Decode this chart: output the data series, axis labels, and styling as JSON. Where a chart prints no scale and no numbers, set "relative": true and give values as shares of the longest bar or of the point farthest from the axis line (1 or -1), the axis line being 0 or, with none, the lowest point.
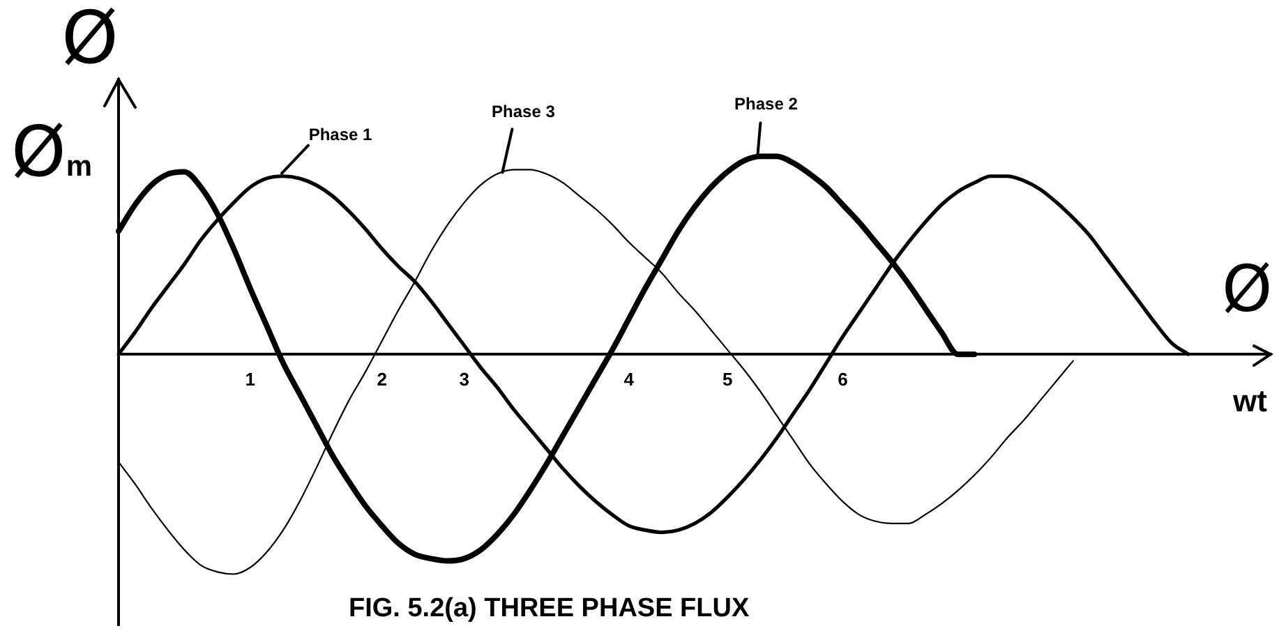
{
  "chart_data": {
    "type": "line",
    "title": "FIG. 5.2(a) THREE PHASE FLUX",
    "xlabel": "wt",
    "ylabel": "Ø",
    "annotations": [
      "Ø$_{m}$",
      "Ø"
    ],
    "relative": true,
    "categories": [
      null,
      null,
      null,
      null,
      null,
      null,
      null,
      null,
      "1",
      null,
      null,
      null,
      null,
      null,
      null,
      null,
      "2",
      null,
      null,
      null,
      null,
      "3",
      null,
      null,
      null,
      null,
      null,
      null,
      null,
      null,
      null,
      "4",
      null,
      null,
      null,
      null,
      null,
      "5",
      null,
      null,
      null,
      null,
      null,
      null,
      "6",
      null,
      null,
      null,
      null,
      null,
      null,
      null,
      null,
      null,
      null,
      null,
      null,
      null,
      null,
      null,
      null,
      null,
      null,
      null,
      null,
      null,
      null,
      null,
      null,
      null,
      null
    ],
    "series": [
      {
        "name": "Phase 1",
        "color": "#000000",
        "values": [
          0,
          0.1,
          0.21,
          0.31,
          0.41,
          0.52,
          0.61,
          0.69,
          0.76,
          0.8,
          0.81,
          0.8,
          0.77,
          0.72,
          0.65,
          0.57,
          0.48,
          0.4,
          0.33,
          0.24,
          0.14,
          0.04,
          -0.06,
          -0.15,
          -0.25,
          -0.34,
          -0.43,
          -0.52,
          -0.6,
          -0.67,
          -0.73,
          -0.78,
          -0.8,
          -0.81,
          -0.8,
          -0.77,
          -0.72,
          -0.65,
          -0.57,
          -0.48,
          -0.38,
          -0.27,
          -0.16,
          -0.04,
          0.08,
          0.19,
          0.3,
          0.41,
          0.51,
          0.6,
          0.68,
          0.74,
          0.78,
          0.81,
          0.81,
          0.79,
          0.75,
          0.69,
          0.62,
          0.54,
          0.44,
          0.34,
          0.24,
          0.14,
          0.05,
          0,
          null,
          null,
          null,
          null,
          null
        ]
      },
      {
        "name": "Phase 2",
        "color": "#000000",
        "values": [
          0.56,
          0.68,
          0.77,
          0.82,
          0.83,
          0.76,
          0.64,
          0.48,
          0.3,
          0.13,
          -0.04,
          -0.18,
          -0.32,
          -0.46,
          -0.58,
          -0.69,
          -0.78,
          -0.86,
          -0.91,
          -0.93,
          -0.94,
          -0.93,
          -0.89,
          -0.82,
          -0.73,
          -0.62,
          -0.5,
          -0.37,
          -0.24,
          -0.11,
          0.02,
          0.16,
          0.3,
          0.43,
          0.56,
          0.67,
          0.76,
          0.83,
          0.88,
          0.9,
          0.9,
          0.87,
          0.82,
          0.76,
          0.68,
          0.6,
          0.51,
          0.42,
          0.32,
          0.21,
          0.1,
          0,
          0,
          null,
          null,
          null,
          null,
          null,
          null,
          null,
          null,
          null,
          null,
          null,
          null,
          null,
          null,
          null,
          null,
          null,
          null
        ]
      },
      {
        "name": "Phase 3",
        "color": "#000000",
        "values": [
          -0.49,
          -0.59,
          -0.7,
          -0.8,
          -0.89,
          -0.96,
          -0.99,
          -1.0,
          -0.97,
          -0.9,
          -0.8,
          -0.67,
          -0.52,
          -0.36,
          -0.21,
          -0.08,
          0.06,
          0.2,
          0.33,
          0.47,
          0.59,
          0.69,
          0.77,
          0.82,
          0.84,
          0.84,
          0.82,
          0.78,
          0.72,
          0.66,
          0.59,
          0.51,
          0.44,
          0.37,
          0.28,
          0.2,
          0.11,
          0.02,
          -0.07,
          -0.17,
          -0.28,
          -0.39,
          -0.5,
          -0.59,
          -0.67,
          -0.73,
          -0.76,
          -0.77,
          -0.77,
          -0.73,
          -0.68,
          -0.62,
          -0.55,
          -0.47,
          -0.38,
          -0.3,
          -0.21,
          -0.12,
          -0.03,
          null,
          null,
          null,
          null,
          null,
          null,
          null,
          null,
          null,
          null,
          null,
          null
        ]
      }
    ]
  }
}
